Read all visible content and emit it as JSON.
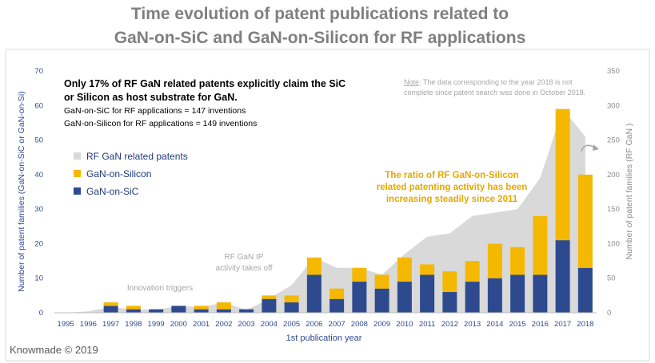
{
  "title_line1": "Time evolution of patent publications related to",
  "title_line2": "GaN-on-SiC and GaN-on-Silicon for RF applications",
  "footer": "Knowmade © 2019",
  "colors": {
    "title": "#7f7f7f",
    "sic": "#2e4a8f",
    "silicon": "#f5b800",
    "area": "#d9d9d9",
    "axis_text": "#2e4a8f",
    "right_axis_text": "#8c8c8c",
    "ratio_text": "#e8a800",
    "annotation_gray": "#a6a6a6"
  },
  "chart_data": {
    "type": "bar",
    "stacked": true,
    "categories": [
      "1995",
      "1996",
      "1997",
      "1998",
      "1999",
      "2000",
      "2001",
      "2002",
      "2003",
      "2004",
      "2005",
      "2006",
      "2007",
      "2008",
      "2009",
      "2010",
      "2011",
      "2012",
      "2013",
      "2014",
      "2015",
      "2016",
      "2017",
      "2018"
    ],
    "series": [
      {
        "name": "GaN-on-SiC",
        "axis": "left",
        "values": [
          0,
          0,
          2,
          1,
          1,
          2,
          1,
          1,
          1,
          4,
          3,
          11,
          4,
          9,
          7,
          9,
          11,
          6,
          9,
          10,
          11,
          11,
          21,
          13
        ]
      },
      {
        "name": "GaN-on-Silicon",
        "axis": "left",
        "values": [
          0,
          0,
          1,
          1,
          0,
          0,
          1,
          2,
          0,
          1,
          2,
          5,
          3,
          4,
          4,
          7,
          3,
          6,
          6,
          10,
          8,
          17,
          38,
          27
        ]
      },
      {
        "name": "RF GaN related patents",
        "axis": "right",
        "type": "area",
        "values": [
          0,
          2,
          8,
          5,
          4,
          10,
          8,
          15,
          4,
          20,
          40,
          80,
          65,
          65,
          55,
          85,
          110,
          115,
          140,
          145,
          150,
          195,
          295,
          255
        ]
      }
    ],
    "legend": [
      "RF GaN related patents",
      "GaN-on-Silicon",
      "GaN-on-SiC"
    ],
    "legend_position": "upper-left",
    "xlabel": "1st publication year",
    "ylabel_left": "Number of patent families (GaN-on-SiC or GaN-on-Si)",
    "ylabel_right": "Number of patent families (RF GaN )",
    "ylim_left": [
      0,
      70
    ],
    "yticks_left": [
      0,
      10,
      20,
      30,
      40,
      50,
      60,
      70
    ],
    "ylim_right": [
      0,
      350
    ],
    "yticks_right": [
      0,
      50,
      100,
      150,
      200,
      250,
      300,
      350
    ],
    "annotations": {
      "headline_line1": "Only 17% of RF GaN related patents explicitly claim the SiC",
      "headline_line2": "or Silicon as host substrate for GaN.",
      "stat_sic": "GaN-on-SiC for RF applications = 147 inventions",
      "stat_silicon": "GaN-on-Silicon for RF applications = 149 inventions",
      "note_label": "Note",
      "note_line1": ": The data corresponding to the year 2018 is not",
      "note_line2": "complete since patent search was done in October 2018.",
      "ratio_line1": "The ratio of RF GaN-on-Silicon",
      "ratio_line2": "related patenting activity has been",
      "ratio_line3": "increasing steadily since 2011",
      "takeoff_line1": "RF GaN IP",
      "takeoff_line2": "activity takes off",
      "innovation": "Innovation triggers"
    }
  }
}
